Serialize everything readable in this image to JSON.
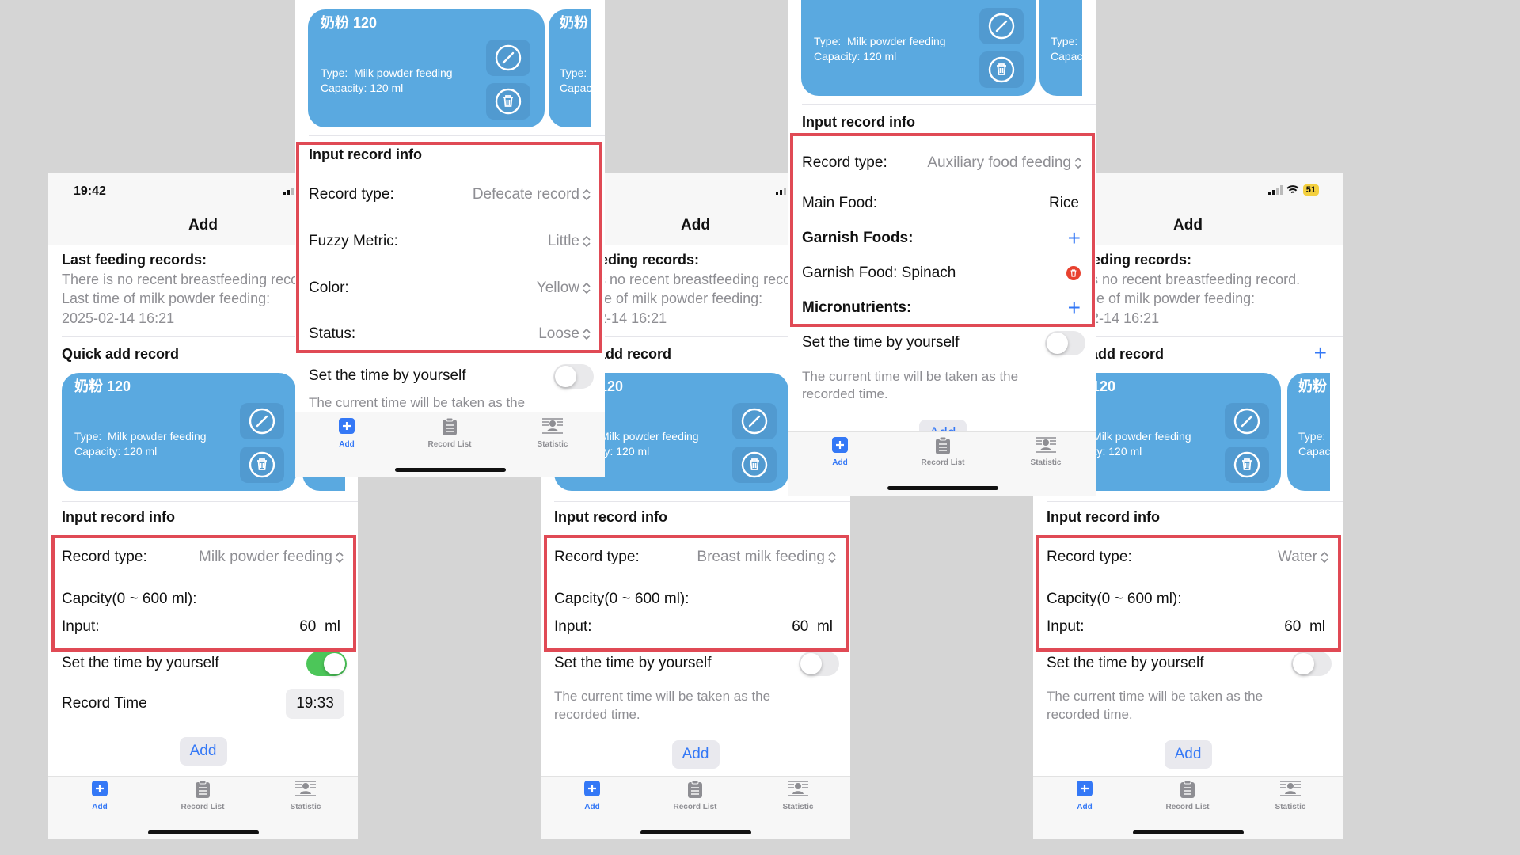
{
  "app": {
    "status_time": "19:42",
    "battery": "51",
    "nav_title": "Add"
  },
  "last_feeding": {
    "heading": "Last feeding records:",
    "lines": [
      "There is no recent breastfeeding record.",
      "Last time of milk powder feeding:",
      "2025-02-14 16:21"
    ]
  },
  "quick_add": {
    "heading": "Quick add record",
    "card": {
      "title": "奶粉 120",
      "type_label": "Type:",
      "type_value": "Milk powder feeding",
      "capacity": "Capacity: 120 ml"
    },
    "second_card": {
      "title": "奶粉",
      "type_label": "Type:",
      "capacity": "Capacity: 120 ml"
    }
  },
  "tabs": [
    {
      "label": "Add",
      "icon": "plus-square-icon"
    },
    {
      "label": "Record List",
      "icon": "clipboard-icon"
    },
    {
      "label": "Statistic",
      "icon": "statistic-icon"
    }
  ],
  "colors": {
    "accent": "#3478f6",
    "card": "#5aa9e0",
    "highlight_box": "#e04a55",
    "toggle_on": "#4cc659"
  },
  "screens": [
    {
      "input_heading": "Input record info",
      "record_type_label": "Record type:",
      "record_type_value": "Milk powder feeding",
      "capacity_label": "Capcity(0 ~ 600 ml):",
      "input_label": "Input:",
      "input_value": "60",
      "unit": "ml",
      "set_time_label": "Set the time by yourself",
      "set_time_on": true,
      "record_time_label": "Record Time",
      "record_time_value": "19:33",
      "add_button": "Add"
    },
    {
      "input_heading": "Input record info",
      "record_type_label": "Record type:",
      "record_type_value": "Defecate record",
      "fields": [
        {
          "label": "Fuzzy Metric:",
          "value": "Little"
        },
        {
          "label": "Color:",
          "value": "Yellow"
        },
        {
          "label": "Status:",
          "value": "Loose"
        }
      ],
      "set_time_label": "Set the time by yourself",
      "set_time_on": false,
      "hint": "The current time will be taken as the"
    },
    {
      "input_heading": "Input record info",
      "record_type_label": "Record type:",
      "record_type_value": "Breast milk feeding",
      "capacity_label": "Capcity(0 ~ 600 ml):",
      "input_label": "Input:",
      "input_value": "60",
      "unit": "ml",
      "set_time_label": "Set the time by yourself",
      "set_time_on": false,
      "hint_lines": [
        "The current time will be taken as the",
        "recorded time."
      ],
      "add_button": "Add"
    },
    {
      "input_heading": "Input record info",
      "record_type_label": "Record type:",
      "record_type_value": "Auxiliary food feeding",
      "main_food_label": "Main Food:",
      "main_food_value": "Rice",
      "garnish_foods_label": "Garnish Foods:",
      "garnish_item": "Garnish Food: Spinach",
      "micronutrients_label": "Micronutrients:",
      "set_time_label": "Set the time by yourself",
      "set_time_on": false,
      "hint_lines": [
        "The current time will be taken as the",
        "recorded time."
      ],
      "add_button": "Add"
    },
    {
      "input_heading": "Input record info",
      "record_type_label": "Record type:",
      "record_type_value": "Water",
      "capacity_label": "Capcity(0 ~ 600 ml):",
      "input_label": "Input:",
      "input_value": "60",
      "unit": "ml",
      "set_time_label": "Set the time by yourself",
      "set_time_on": false,
      "hint_lines": [
        "The current time will be taken as the",
        "recorded time."
      ],
      "add_button": "Add"
    }
  ]
}
